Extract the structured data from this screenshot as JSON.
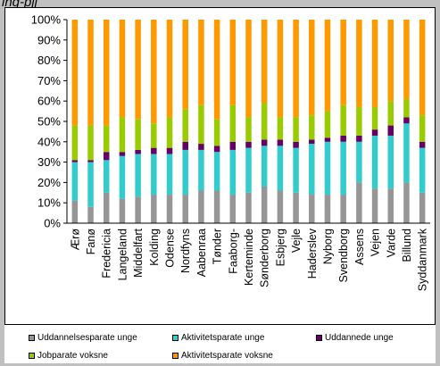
{
  "top_text": "ing-pjj",
  "chart_data": {
    "type": "bar",
    "stacked": true,
    "categories": [
      "Ærø",
      "Fanø",
      "Fredericia",
      "Langeland",
      "Middelfart",
      "Kolding",
      "Odense",
      "Nordfyns",
      "Aabenraa",
      "Tønder",
      "Faaborg-",
      "Kerteminde",
      "Sønderborg",
      "Esbjerg",
      "Vejle",
      "Haderslev",
      "Nyborg",
      "Svendborg",
      "Assens",
      "Vejen",
      "Varde",
      "Billund",
      "Syddanmark"
    ],
    "series": [
      {
        "name": "Uddannelsesparate unge",
        "color": "#969696",
        "values": [
          11,
          8,
          15,
          12,
          13,
          14,
          14,
          14,
          16,
          16,
          14,
          15,
          18,
          16,
          15,
          14,
          14,
          14,
          20,
          17,
          17,
          20,
          15
        ]
      },
      {
        "name": "Aktivitetsparate unge",
        "color": "#33cccc",
        "values": [
          19,
          22,
          16,
          21,
          21,
          20,
          20,
          22,
          20,
          19,
          22,
          22,
          20,
          22,
          22,
          25,
          26,
          26,
          20,
          26,
          26,
          29,
          22
        ]
      },
      {
        "name": "Uddannede unge",
        "color": "#660066",
        "values": [
          1,
          1,
          4,
          2,
          2,
          3,
          3,
          4,
          3,
          3,
          4,
          3,
          3,
          3,
          3,
          2,
          2,
          3,
          3,
          3,
          5,
          3,
          3
        ]
      },
      {
        "name": "Jobparate voksne",
        "color": "#99cc00",
        "values": [
          17,
          17,
          13,
          17,
          15,
          12,
          15,
          16,
          19,
          13,
          18,
          12,
          18,
          11,
          12,
          12,
          13,
          15,
          14,
          11,
          12,
          9,
          13
        ]
      },
      {
        "name": "Aktivitetsparate voksne",
        "color": "#ff9900",
        "values": [
          52,
          52,
          52,
          48,
          49,
          51,
          48,
          44,
          42,
          49,
          42,
          48,
          41,
          48,
          48,
          47,
          45,
          42,
          43,
          43,
          40,
          39,
          47
        ]
      }
    ],
    "y_ticks": [
      "0%",
      "10%",
      "20%",
      "30%",
      "40%",
      "50%",
      "60%",
      "70%",
      "80%",
      "90%",
      "100%"
    ],
    "ylim": [
      0,
      100
    ],
    "grid": false,
    "legend_position": "bottom"
  }
}
